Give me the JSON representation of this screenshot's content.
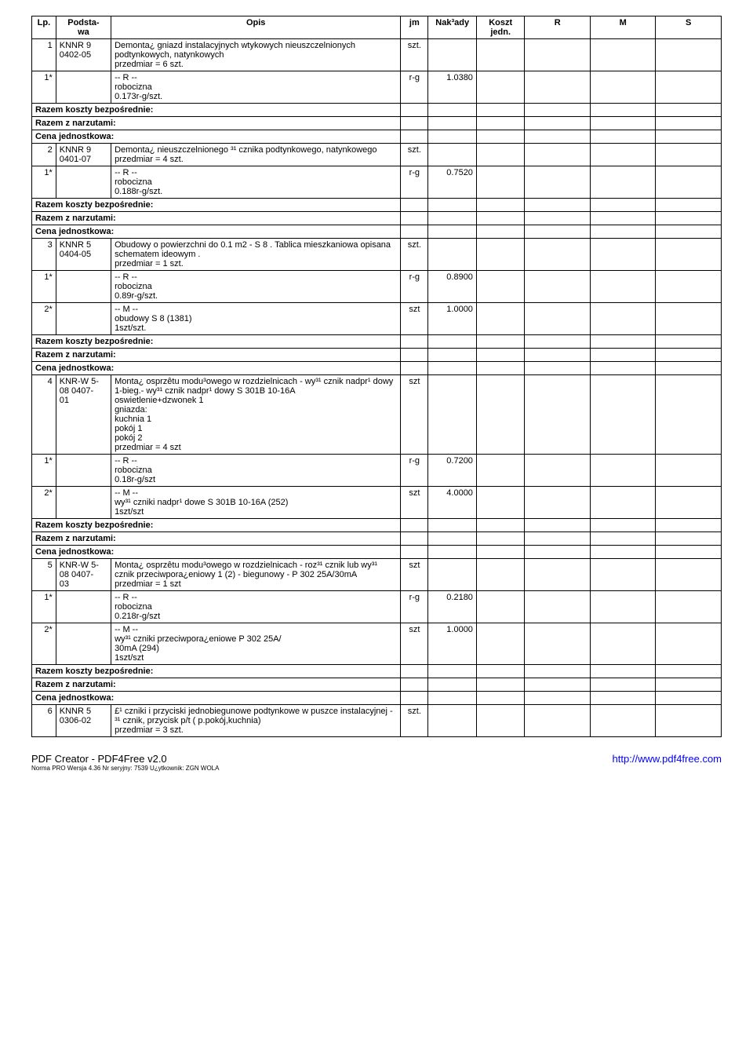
{
  "headers": {
    "lp": "Lp.",
    "podstawa": "Podsta-\nwa",
    "opis": "Opis",
    "jm": "jm",
    "naklady": "Nak³ady",
    "koszt": "Koszt\njedn.",
    "r": "R",
    "m": "M",
    "s": "S"
  },
  "labels": {
    "razem_koszty": "Razem koszty bezpośrednie:",
    "razem_narzuty": "Razem z narzutami:",
    "cena_jedn": "Cena jednostkowa:"
  },
  "rows": {
    "r1": {
      "lp": "1",
      "podstawa": "KNNR 9\n0402-05",
      "opis": "Demonta¿ gniazd instalacyjnych wtykowych nieuszczelnionych podtynkowych, natynkowych\nprzedmiar  = 6 szt.",
      "jm": "szt."
    },
    "r1s": {
      "lp": "1*",
      "opis": "-- R --\nrobocizna\n0.173r-g/szt.",
      "jm": "r-g",
      "naklady": "1.0380"
    },
    "r2": {
      "lp": "2",
      "podstawa": "KNNR 9\n0401-07",
      "opis": "Demonta¿ nieuszczelnionego ³¹ cznika podtynkowego, natynkowego\nprzedmiar  = 4 szt.",
      "jm": "szt."
    },
    "r2s": {
      "lp": "1*",
      "opis": "-- R --\nrobocizna\n0.188r-g/szt.",
      "jm": "r-g",
      "naklady": "0.7520"
    },
    "r3": {
      "lp": "3",
      "podstawa": "KNNR 5\n0404-05",
      "opis": "Obudowy o powierzchni do 0.1 m2 - S 8 . Tablica mieszkaniowa opisana schematem ideowym .\nprzedmiar  = 1 szt.",
      "jm": "szt."
    },
    "r3s1": {
      "lp": "1*",
      "opis": "-- R --\nrobocizna\n0.89r-g/szt.",
      "jm": "r-g",
      "naklady": "0.8900"
    },
    "r3s2": {
      "lp": "2*",
      "opis": "-- M --\nobudowy S 8 (1381)\n1szt/szt.",
      "jm": "szt",
      "naklady": "1.0000"
    },
    "r4": {
      "lp": "4",
      "podstawa": "KNR-W 5-\n08 0407-\n01",
      "opis": "Monta¿ osprzêtu modu³owego w rozdzielnicach - wy³¹ cznik nadpr¹ dowy 1-bieg.- wy³¹ cznik nadpr¹ dowy S 301B 10-16A\noswietlenie+dzwonek 1\ngniazda:\nkuchnia 1\npokój 1\npokój 2\nprzedmiar  = 4 szt",
      "jm": "szt"
    },
    "r4s1": {
      "lp": "1*",
      "opis": "-- R --\nrobocizna\n0.18r-g/szt",
      "jm": "r-g",
      "naklady": "0.7200"
    },
    "r4s2": {
      "lp": "2*",
      "opis": "-- M --\nwy³¹ czniki nadpr¹ dowe S 301B 10-16A (252)\n1szt/szt",
      "jm": "szt",
      "naklady": "4.0000"
    },
    "r5": {
      "lp": "5",
      "podstawa": "KNR-W 5-\n08 0407-\n03",
      "opis": "Monta¿ osprzêtu modu³owego w rozdzielnicach - roz³¹ cznik lub wy³¹ cznik przeciwpora¿eniowy 1 (2) - biegunowy - P 302 25A/30mA\nprzedmiar  = 1 szt",
      "jm": "szt"
    },
    "r5s1": {
      "lp": "1*",
      "opis": "-- R --\nrobocizna\n0.218r-g/szt",
      "jm": "r-g",
      "naklady": "0.2180"
    },
    "r5s2": {
      "lp": "2*",
      "opis": "-- M --\nwy³¹ czniki przeciwpora¿eniowe P 302 25A/\n30mA (294)\n1szt/szt",
      "jm": "szt",
      "naklady": "1.0000"
    },
    "r6": {
      "lp": "6",
      "podstawa": "KNNR 5\n0306-02",
      "opis": "£¹ czniki i przyciski jednobiegunowe podtynkowe w puszce instalacyjnej - ³¹ cznik, przycisk  p/t ( p.pokój,kuchnia)\nprzedmiar  = 3 szt.",
      "jm": "szt."
    }
  },
  "footer": {
    "left": "PDF Creator - PDF4Free v2.0",
    "left2": "Norma PRO Wersja 4.36 Nr seryjny: 7539 U¿ytkownik: ZGN WOLA",
    "right": "http://www.pdf4free.com"
  }
}
